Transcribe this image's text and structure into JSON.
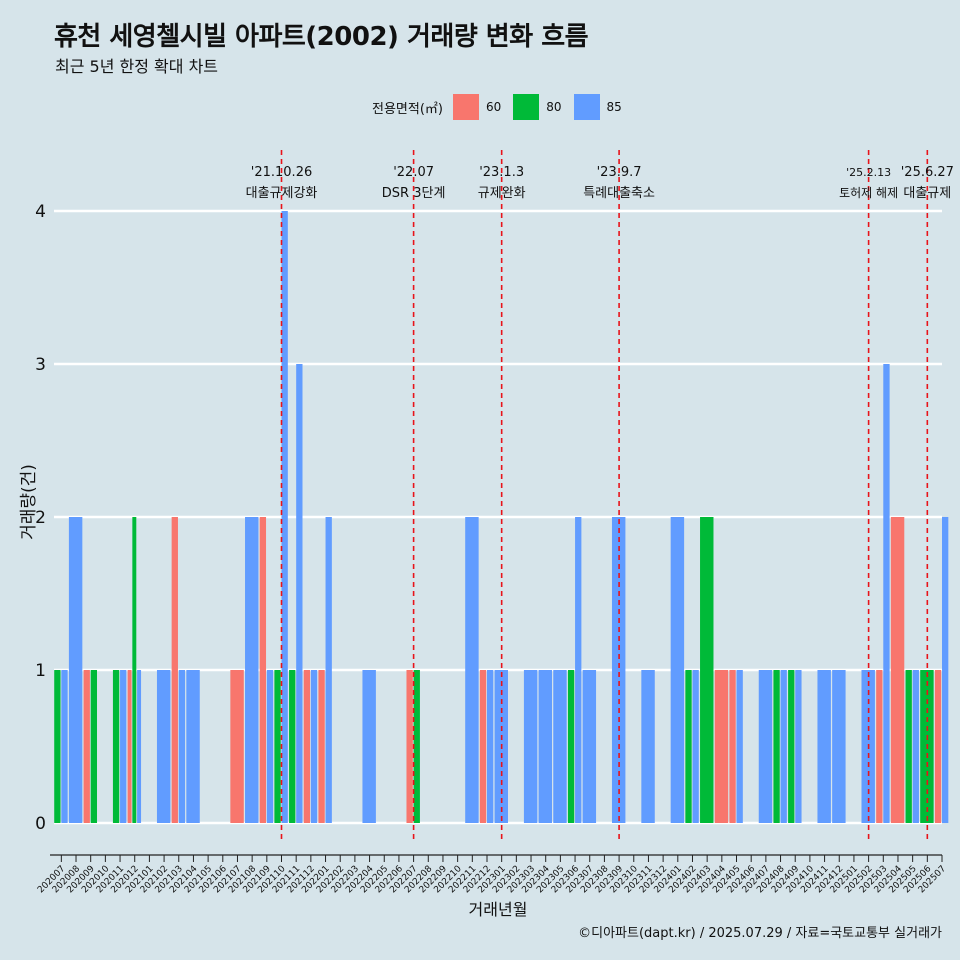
{
  "title": "휴천 세영첼시빌 아파트(2002) 거래량 변화 흐름",
  "subtitle": "최근 5년 한정 확대 차트",
  "legend": {
    "title": "전용면적(㎡)",
    "items": [
      {
        "label": "60",
        "color": "#F8766D"
      },
      {
        "label": "80",
        "color": "#00BA38"
      },
      {
        "label": "85",
        "color": "#619CFF"
      }
    ]
  },
  "caption": "©디아파트(dapt.kr) / 2025.07.29 / 자료=국토교통부 실거래가",
  "chart_data": {
    "type": "bar",
    "title": "휴천 세영첼시빌 아파트(2002) 거래량 변화 흐름",
    "subtitle": "최근 5년 한정 확대 차트",
    "xlabel": "거래년월",
    "ylabel": "거래량(건)",
    "ylim": [
      0,
      4
    ],
    "yticks": [
      0,
      1,
      2,
      3,
      4
    ],
    "grid": true,
    "legend_position": "top",
    "categories": [
      "202007",
      "202008",
      "202009",
      "202010",
      "202011",
      "202012",
      "202101",
      "202102",
      "202103",
      "202104",
      "202105",
      "202106",
      "202107",
      "202108",
      "202109",
      "202110",
      "202111",
      "202112",
      "202201",
      "202202",
      "202203",
      "202204",
      "202205",
      "202206",
      "202207",
      "202208",
      "202209",
      "202210",
      "202211",
      "202212",
      "202301",
      "202302",
      "202303",
      "202304",
      "202305",
      "202306",
      "202307",
      "202308",
      "202309",
      "202310",
      "202311",
      "202312",
      "202401",
      "202402",
      "202403",
      "202404",
      "202405",
      "202406",
      "202407",
      "202408",
      "202409",
      "202410",
      "202411",
      "202412",
      "202501",
      "202502",
      "202503",
      "202504",
      "202505",
      "202506",
      "202507"
    ],
    "series": [
      {
        "name": "60",
        "color": "#F8766D",
        "values": [
          0,
          0,
          1,
          0,
          0,
          1,
          0,
          0,
          2,
          0,
          0,
          0,
          1,
          0,
          2,
          0,
          0,
          1,
          1,
          0,
          0,
          0,
          0,
          0,
          1,
          0,
          0,
          0,
          0,
          1,
          0,
          0,
          0,
          0,
          0,
          0,
          0,
          0,
          0,
          0,
          0,
          0,
          0,
          0,
          0,
          1,
          1,
          0,
          0,
          0,
          0,
          0,
          0,
          0,
          0,
          0,
          1,
          2,
          0,
          0,
          1
        ]
      },
      {
        "name": "80",
        "color": "#00BA38",
        "values": [
          1,
          0,
          1,
          0,
          1,
          2,
          0,
          0,
          0,
          0,
          0,
          0,
          0,
          0,
          0,
          1,
          1,
          0,
          0,
          0,
          0,
          0,
          0,
          0,
          1,
          0,
          0,
          0,
          0,
          0,
          0,
          0,
          0,
          0,
          0,
          1,
          0,
          0,
          0,
          0,
          0,
          0,
          0,
          1,
          2,
          0,
          0,
          0,
          0,
          1,
          1,
          0,
          0,
          0,
          0,
          0,
          0,
          0,
          1,
          1,
          0
        ]
      },
      {
        "name": "85",
        "color": "#619CFF",
        "values": [
          1,
          2,
          0,
          0,
          1,
          1,
          0,
          1,
          1,
          1,
          0,
          0,
          0,
          2,
          1,
          4,
          3,
          1,
          2,
          0,
          0,
          1,
          0,
          0,
          0,
          0,
          0,
          0,
          2,
          1,
          1,
          0,
          1,
          1,
          1,
          2,
          1,
          0,
          2,
          0,
          1,
          0,
          2,
          1,
          0,
          0,
          1,
          0,
          1,
          1,
          1,
          0,
          1,
          1,
          0,
          1,
          3,
          0,
          1,
          0,
          2
        ]
      }
    ],
    "events": [
      {
        "date": "'21.10.26",
        "label": "대출규제강화",
        "month": "202110"
      },
      {
        "date": "'22.07",
        "label": "DSR 3단계",
        "month": "202207"
      },
      {
        "date": "'23.1.3",
        "label": "규제완화",
        "month": "202301"
      },
      {
        "date": "'23.9.7",
        "label": "특례대출축소",
        "month": "202309"
      },
      {
        "date": "'25.2.13",
        "label": "토허제 해제",
        "month": "202502"
      },
      {
        "date": "'25.6.27",
        "label": "대출규제",
        "month": "202506"
      }
    ]
  }
}
